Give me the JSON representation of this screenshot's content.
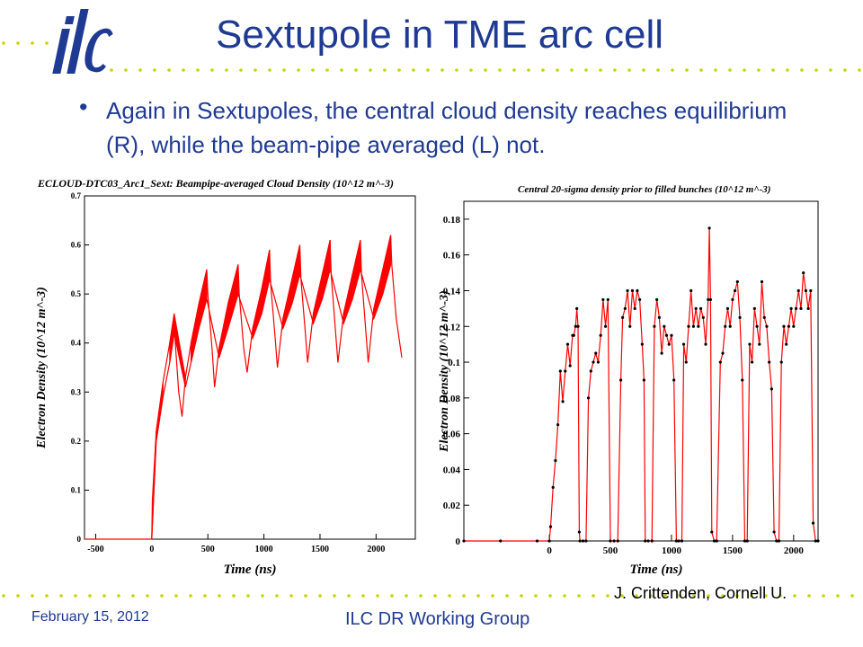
{
  "slide": {
    "title": "Sextupole in TME arc cell",
    "bullet": "Again in Sextupoles, the central cloud density reaches equilibrium (R), while the beam-pipe averaged (L) not.",
    "credit": "J. Crittenden, Cornell U.",
    "footer_date": "February 15, 2012",
    "footer_group": "ILC DR Working Group",
    "logo_text": "ilc",
    "colors": {
      "title": "#1f3a93",
      "dots": "#c8d400",
      "logo": "#1f3a93",
      "series": "#ff0000"
    }
  },
  "chart_data": [
    {
      "type": "area",
      "title": "ECLOUD-DTC03_Arc1_Sext: Beampipe-averaged Cloud Density (10^12 m^-3)",
      "xlabel": "Time (ns)",
      "ylabel": "Electron Density (10^12 m^-3)",
      "xlim": [
        -600,
        2350
      ],
      "ylim": [
        0,
        0.7
      ],
      "xticks": [
        "-500",
        "0",
        "500",
        "1000",
        "1500",
        "2000"
      ],
      "yticks": [
        "0",
        "0.1",
        "0.2",
        "0.3",
        "0.4",
        "0.5",
        "0.6",
        "0.7"
      ],
      "grid": false,
      "series": [
        {
          "upper": [
            [
              -600,
              0
            ],
            [
              0,
              0
            ],
            [
              5,
              0.08
            ],
            [
              40,
              0.22
            ],
            [
              100,
              0.32
            ],
            [
              160,
              0.4
            ],
            [
              200,
              0.46
            ],
            [
              210,
              0.4
            ],
            [
              240,
              0.3
            ],
            [
              270,
              0.25
            ],
            [
              300,
              0.33
            ],
            [
              350,
              0.4
            ],
            [
              420,
              0.48
            ],
            [
              490,
              0.55
            ],
            [
              500,
              0.5
            ],
            [
              540,
              0.38
            ],
            [
              560,
              0.31
            ],
            [
              600,
              0.39
            ],
            [
              680,
              0.48
            ],
            [
              770,
              0.56
            ],
            [
              780,
              0.5
            ],
            [
              820,
              0.39
            ],
            [
              850,
              0.34
            ],
            [
              900,
              0.43
            ],
            [
              980,
              0.51
            ],
            [
              1050,
              0.59
            ],
            [
              1060,
              0.52
            ],
            [
              1100,
              0.41
            ],
            [
              1120,
              0.35
            ],
            [
              1170,
              0.45
            ],
            [
              1250,
              0.53
            ],
            [
              1320,
              0.6
            ],
            [
              1330,
              0.53
            ],
            [
              1370,
              0.42
            ],
            [
              1390,
              0.36
            ],
            [
              1440,
              0.46
            ],
            [
              1520,
              0.54
            ],
            [
              1590,
              0.61
            ],
            [
              1600,
              0.54
            ],
            [
              1640,
              0.42
            ],
            [
              1660,
              0.36
            ],
            [
              1710,
              0.46
            ],
            [
              1790,
              0.54
            ],
            [
              1860,
              0.61
            ],
            [
              1870,
              0.54
            ],
            [
              1910,
              0.42
            ],
            [
              1930,
              0.36
            ],
            [
              1980,
              0.47
            ],
            [
              2060,
              0.55
            ],
            [
              2130,
              0.62
            ],
            [
              2140,
              0.56
            ],
            [
              2180,
              0.45
            ],
            [
              2230,
              0.37
            ]
          ],
          "lower": [
            [
              0,
              0
            ],
            [
              40,
              0.2
            ],
            [
              100,
              0.29
            ],
            [
              160,
              0.36
            ],
            [
              200,
              0.42
            ],
            [
              300,
              0.31
            ],
            [
              350,
              0.36
            ],
            [
              420,
              0.43
            ],
            [
              490,
              0.49
            ],
            [
              600,
              0.37
            ],
            [
              680,
              0.43
            ],
            [
              770,
              0.5
            ],
            [
              900,
              0.41
            ],
            [
              980,
              0.46
            ],
            [
              1050,
              0.53
            ],
            [
              1170,
              0.43
            ],
            [
              1250,
              0.48
            ],
            [
              1320,
              0.54
            ],
            [
              1440,
              0.44
            ],
            [
              1520,
              0.49
            ],
            [
              1590,
              0.55
            ],
            [
              1710,
              0.44
            ],
            [
              1790,
              0.49
            ],
            [
              1860,
              0.55
            ],
            [
              1980,
              0.45
            ],
            [
              2060,
              0.5
            ],
            [
              2130,
              0.56
            ]
          ]
        }
      ]
    },
    {
      "type": "line",
      "title": "Central 20-sigma density prior to filled bunches (10^12 m^-3)",
      "xlabel": "Time (ns)",
      "ylabel": "Electron Density (10^12 m^-3)",
      "xlim": [
        -700,
        2200
      ],
      "ylim": [
        0,
        0.19
      ],
      "xticks": [
        "0",
        "500",
        "1000",
        "1500",
        "2000"
      ],
      "yticks": [
        "0",
        "0.02",
        "0.04",
        "0.06",
        "0.08",
        "0.1",
        "0.12",
        "0.14",
        "0.16",
        "0.18"
      ],
      "grid": false,
      "series": [
        {
          "points": [
            [
              -700,
              0
            ],
            [
              -400,
              0
            ],
            [
              -100,
              0
            ],
            [
              0,
              0
            ],
            [
              10,
              0.008
            ],
            [
              30,
              0.03
            ],
            [
              50,
              0.045
            ],
            [
              70,
              0.065
            ],
            [
              90,
              0.095
            ],
            [
              110,
              0.078
            ],
            [
              130,
              0.095
            ],
            [
              150,
              0.11
            ],
            [
              170,
              0.098
            ],
            [
              190,
              0.115
            ],
            [
              200,
              0.115
            ],
            [
              215,
              0.12
            ],
            [
              225,
              0.13
            ],
            [
              235,
              0.12
            ],
            [
              245,
              0.005
            ],
            [
              250,
              0
            ],
            [
              275,
              0
            ],
            [
              300,
              0
            ],
            [
              320,
              0.08
            ],
            [
              340,
              0.095
            ],
            [
              360,
              0.1
            ],
            [
              380,
              0.105
            ],
            [
              400,
              0.1
            ],
            [
              420,
              0.115
            ],
            [
              440,
              0.135
            ],
            [
              460,
              0.12
            ],
            [
              480,
              0.135
            ],
            [
              500,
              0.0
            ],
            [
              530,
              0
            ],
            [
              560,
              0
            ],
            [
              585,
              0.09
            ],
            [
              600,
              0.125
            ],
            [
              620,
              0.13
            ],
            [
              640,
              0.14
            ],
            [
              660,
              0.12
            ],
            [
              680,
              0.14
            ],
            [
              700,
              0.13
            ],
            [
              720,
              0.14
            ],
            [
              740,
              0.135
            ],
            [
              760,
              0.11
            ],
            [
              775,
              0.09
            ],
            [
              785,
              0
            ],
            [
              810,
              0
            ],
            [
              840,
              0
            ],
            [
              860,
              0.12
            ],
            [
              880,
              0.135
            ],
            [
              900,
              0.125
            ],
            [
              920,
              0.105
            ],
            [
              940,
              0.12
            ],
            [
              960,
              0.115
            ],
            [
              980,
              0.11
            ],
            [
              1000,
              0.115
            ],
            [
              1020,
              0.09
            ],
            [
              1040,
              0.0
            ],
            [
              1060,
              0
            ],
            [
              1085,
              0
            ],
            [
              1100,
              0.11
            ],
            [
              1120,
              0.1
            ],
            [
              1140,
              0.12
            ],
            [
              1160,
              0.14
            ],
            [
              1180,
              0.12
            ],
            [
              1200,
              0.13
            ],
            [
              1220,
              0.12
            ],
            [
              1240,
              0.13
            ],
            [
              1260,
              0.125
            ],
            [
              1280,
              0.11
            ],
            [
              1300,
              0.135
            ],
            [
              1310,
              0.175
            ],
            [
              1320,
              0.135
            ],
            [
              1330,
              0.005
            ],
            [
              1350,
              0
            ],
            [
              1370,
              0
            ],
            [
              1400,
              0.1
            ],
            [
              1420,
              0.105
            ],
            [
              1440,
              0.12
            ],
            [
              1460,
              0.13
            ],
            [
              1480,
              0.12
            ],
            [
              1500,
              0.135
            ],
            [
              1520,
              0.14
            ],
            [
              1540,
              0.145
            ],
            [
              1560,
              0.125
            ],
            [
              1580,
              0.09
            ],
            [
              1600,
              0
            ],
            [
              1620,
              0
            ],
            [
              1640,
              0.11
            ],
            [
              1660,
              0.1
            ],
            [
              1680,
              0.13
            ],
            [
              1700,
              0.12
            ],
            [
              1720,
              0.11
            ],
            [
              1740,
              0.145
            ],
            [
              1760,
              0.125
            ],
            [
              1780,
              0.12
            ],
            [
              1800,
              0.1
            ],
            [
              1820,
              0.085
            ],
            [
              1840,
              0.005
            ],
            [
              1860,
              0
            ],
            [
              1880,
              0
            ],
            [
              1900,
              0.1
            ],
            [
              1920,
              0.12
            ],
            [
              1940,
              0.11
            ],
            [
              1960,
              0.12
            ],
            [
              1980,
              0.13
            ],
            [
              2000,
              0.12
            ],
            [
              2020,
              0.13
            ],
            [
              2040,
              0.14
            ],
            [
              2060,
              0.13
            ],
            [
              2080,
              0.15
            ],
            [
              2100,
              0.14
            ],
            [
              2120,
              0.13
            ],
            [
              2140,
              0.14
            ],
            [
              2160,
              0.01
            ],
            [
              2180,
              0
            ],
            [
              2200,
              0
            ]
          ]
        }
      ]
    }
  ]
}
